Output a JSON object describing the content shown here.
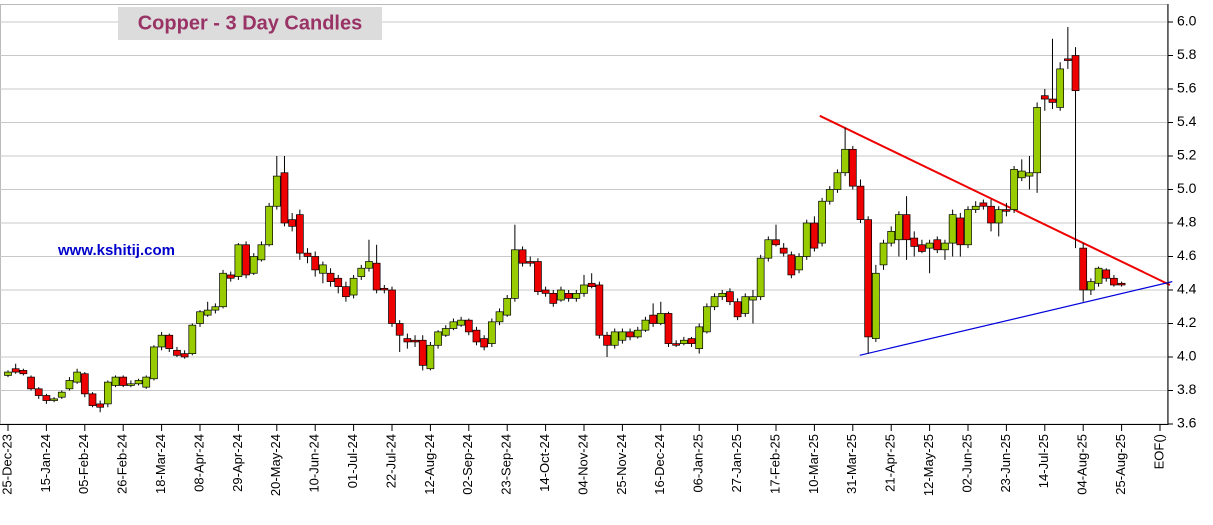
{
  "chart_data": {
    "type": "candlestick",
    "title": "Copper  - 3 Day Candles",
    "annotation": "www.kshitij.com",
    "up_color": "#99cc00",
    "down_color": "#ee0000",
    "grid": true,
    "ylim": [
      3.6,
      6.0
    ],
    "yticks": [
      3.6,
      3.8,
      {
        "value": 4,
        "label": "4.0"
      },
      4.2,
      4.4,
      4.6,
      4.8,
      {
        "value": 5,
        "label": "5.0"
      },
      5.2,
      5.4,
      5.6,
      5.8,
      {
        "value": 6,
        "label": "6.0"
      }
    ],
    "categories": [
      "25-Dec-23",
      null,
      null,
      null,
      null,
      "15-Jan-24",
      null,
      null,
      null,
      null,
      "05-Feb-24",
      null,
      null,
      null,
      null,
      "26-Feb-24",
      null,
      null,
      null,
      null,
      "18-Mar-24",
      null,
      null,
      null,
      null,
      "08-Apr-24",
      null,
      null,
      null,
      null,
      "29-Apr-24",
      null,
      null,
      null,
      null,
      "20-May-24",
      null,
      null,
      null,
      null,
      "10-Jun-24",
      null,
      null,
      null,
      null,
      "01-Jul-24",
      null,
      null,
      null,
      null,
      "22-Jul-24",
      null,
      null,
      null,
      null,
      "12-Aug-24",
      null,
      null,
      null,
      null,
      "02-Sep-24",
      null,
      null,
      null,
      null,
      "23-Sep-24",
      null,
      null,
      null,
      null,
      "14-Oct-24",
      null,
      null,
      null,
      null,
      "04-Nov-24",
      null,
      null,
      null,
      null,
      "25-Nov-24",
      null,
      null,
      null,
      null,
      "16-Dec-24",
      null,
      null,
      null,
      null,
      "06-Jan-25",
      null,
      null,
      null,
      null,
      "27-Jan-25",
      null,
      null,
      null,
      null,
      "17-Feb-25",
      null,
      null,
      null,
      null,
      "10-Mar-25",
      null,
      null,
      null,
      null,
      "31-Mar-25",
      null,
      null,
      null,
      null,
      "21-Apr-25",
      null,
      null,
      null,
      null,
      "12-May-25",
      null,
      null,
      null,
      null,
      "02-Jun-25",
      null,
      null,
      null,
      null,
      "23-Jun-25",
      null,
      null,
      null,
      null,
      "14-Jul-25",
      null,
      null,
      null,
      null,
      "04-Aug-25",
      null,
      null,
      null,
      null,
      "25-Aug-25",
      null,
      null,
      null,
      null,
      "EOF()"
    ],
    "ohlc": [
      [
        3.89,
        3.92,
        3.88,
        3.91
      ],
      [
        3.93,
        3.96,
        3.9,
        3.91
      ],
      [
        3.92,
        3.93,
        3.89,
        3.9
      ],
      [
        3.88,
        3.89,
        3.8,
        3.81
      ],
      [
        3.81,
        3.82,
        3.75,
        3.77
      ],
      [
        3.77,
        3.78,
        3.72,
        3.74
      ],
      [
        3.74,
        3.76,
        3.73,
        3.75
      ],
      [
        3.76,
        3.8,
        3.75,
        3.79
      ],
      [
        3.81,
        3.88,
        3.8,
        3.86
      ],
      [
        3.85,
        3.93,
        3.84,
        3.91
      ],
      [
        3.9,
        3.91,
        3.76,
        3.78
      ],
      [
        3.78,
        3.79,
        3.7,
        3.71
      ],
      [
        3.72,
        3.74,
        3.67,
        3.7
      ],
      [
        3.72,
        3.86,
        3.7,
        3.85
      ],
      [
        3.83,
        3.89,
        3.82,
        3.88
      ],
      [
        3.88,
        3.89,
        3.82,
        3.83
      ],
      [
        3.83,
        3.86,
        3.82,
        3.84
      ],
      [
        3.84,
        3.87,
        3.83,
        3.86
      ],
      [
        3.82,
        3.89,
        3.81,
        3.88
      ],
      [
        3.87,
        4.07,
        3.86,
        4.06
      ],
      [
        4.06,
        4.15,
        4.04,
        4.13
      ],
      [
        4.13,
        4.14,
        4.03,
        4.05
      ],
      [
        4.04,
        4.06,
        4.0,
        4.01
      ],
      [
        4.02,
        4.04,
        3.99,
        4.0
      ],
      [
        4.02,
        4.2,
        4.01,
        4.19
      ],
      [
        4.2,
        4.28,
        4.18,
        4.27
      ],
      [
        4.25,
        4.33,
        4.24,
        4.28
      ],
      [
        4.28,
        4.32,
        4.26,
        4.3
      ],
      [
        4.3,
        4.52,
        4.29,
        4.5
      ],
      [
        4.49,
        4.51,
        4.45,
        4.47
      ],
      [
        4.48,
        4.68,
        4.46,
        4.67
      ],
      [
        4.67,
        4.69,
        4.47,
        4.49
      ],
      [
        4.5,
        4.62,
        4.49,
        4.6
      ],
      [
        4.58,
        4.69,
        4.57,
        4.67
      ],
      [
        4.67,
        4.92,
        4.66,
        4.9
      ],
      [
        4.9,
        5.2,
        4.88,
        5.08
      ],
      [
        5.1,
        5.2,
        4.78,
        4.8
      ],
      [
        4.82,
        4.86,
        4.75,
        4.78
      ],
      [
        4.85,
        4.88,
        4.58,
        4.62
      ],
      [
        4.62,
        4.65,
        4.56,
        4.6
      ],
      [
        4.6,
        4.63,
        4.48,
        4.52
      ],
      [
        4.5,
        4.57,
        4.44,
        4.55
      ],
      [
        4.5,
        4.53,
        4.42,
        4.45
      ],
      [
        4.47,
        4.49,
        4.38,
        4.42
      ],
      [
        4.42,
        4.45,
        4.33,
        4.36
      ],
      [
        4.37,
        4.49,
        4.35,
        4.47
      ],
      [
        4.48,
        4.55,
        4.46,
        4.53
      ],
      [
        4.53,
        4.7,
        4.51,
        4.57
      ],
      [
        4.56,
        4.67,
        4.38,
        4.4
      ],
      [
        4.41,
        4.43,
        4.38,
        4.4
      ],
      [
        4.4,
        4.42,
        4.18,
        4.2
      ],
      [
        4.2,
        4.22,
        4.03,
        4.13
      ],
      [
        4.11,
        4.14,
        4.05,
        4.09
      ],
      [
        4.1,
        4.13,
        4.06,
        4.09
      ],
      [
        4.1,
        4.13,
        3.92,
        3.95
      ],
      [
        3.93,
        4.09,
        3.92,
        4.07
      ],
      [
        4.07,
        4.16,
        4.05,
        4.15
      ],
      [
        4.13,
        4.19,
        4.12,
        4.17
      ],
      [
        4.17,
        4.23,
        4.16,
        4.21
      ],
      [
        4.19,
        4.24,
        4.18,
        4.22
      ],
      [
        4.22,
        4.23,
        4.13,
        4.15
      ],
      [
        4.16,
        4.18,
        4.07,
        4.09
      ],
      [
        4.11,
        4.13,
        4.04,
        4.06
      ],
      [
        4.08,
        4.23,
        4.06,
        4.21
      ],
      [
        4.21,
        4.29,
        4.19,
        4.27
      ],
      [
        4.25,
        4.37,
        4.24,
        4.35
      ],
      [
        4.35,
        4.79,
        4.33,
        4.64
      ],
      [
        4.64,
        4.66,
        4.54,
        4.56
      ],
      [
        4.57,
        4.6,
        4.54,
        4.56
      ],
      [
        4.57,
        4.59,
        4.37,
        4.39
      ],
      [
        4.4,
        4.42,
        4.36,
        4.38
      ],
      [
        4.38,
        4.4,
        4.3,
        4.32
      ],
      [
        4.34,
        4.42,
        4.33,
        4.4
      ],
      [
        4.38,
        4.4,
        4.33,
        4.35
      ],
      [
        4.35,
        4.4,
        4.33,
        4.38
      ],
      [
        4.38,
        4.49,
        4.36,
        4.43
      ],
      [
        4.44,
        4.5,
        4.41,
        4.42
      ],
      [
        4.43,
        4.45,
        4.11,
        4.13
      ],
      [
        4.13,
        4.15,
        4.0,
        4.07
      ],
      [
        4.07,
        4.17,
        4.05,
        4.15
      ],
      [
        4.1,
        4.17,
        4.08,
        4.15
      ],
      [
        4.15,
        4.17,
        4.1,
        4.12
      ],
      [
        4.12,
        4.18,
        4.11,
        4.16
      ],
      [
        4.16,
        4.24,
        4.15,
        4.22
      ],
      [
        4.25,
        4.32,
        4.18,
        4.2
      ],
      [
        4.2,
        4.33,
        4.19,
        4.26
      ],
      [
        4.26,
        4.27,
        4.06,
        4.08
      ],
      [
        4.08,
        4.1,
        4.06,
        4.07
      ],
      [
        4.08,
        4.12,
        4.07,
        4.1
      ],
      [
        4.11,
        4.12,
        4.06,
        4.08
      ],
      [
        4.05,
        4.2,
        4.02,
        4.18
      ],
      [
        4.15,
        4.32,
        4.14,
        4.3
      ],
      [
        4.3,
        4.38,
        4.28,
        4.36
      ],
      [
        4.36,
        4.4,
        4.34,
        4.38
      ],
      [
        4.39,
        4.41,
        4.31,
        4.33
      ],
      [
        4.33,
        4.35,
        4.22,
        4.24
      ],
      [
        4.26,
        4.38,
        4.24,
        4.36
      ],
      [
        4.34,
        4.4,
        4.2,
        4.36
      ],
      [
        4.36,
        4.61,
        4.34,
        4.59
      ],
      [
        4.59,
        4.72,
        4.57,
        4.7
      ],
      [
        4.7,
        4.79,
        4.66,
        4.67
      ],
      [
        4.65,
        4.68,
        4.6,
        4.62
      ],
      [
        4.61,
        4.63,
        4.47,
        4.49
      ],
      [
        4.52,
        4.62,
        4.5,
        4.6
      ],
      [
        4.6,
        4.82,
        4.58,
        4.8
      ],
      [
        4.8,
        4.84,
        4.63,
        4.65
      ],
      [
        4.68,
        4.95,
        4.66,
        4.93
      ],
      [
        4.93,
        5.02,
        4.91,
        5.0
      ],
      [
        5.0,
        5.12,
        4.98,
        5.1
      ],
      [
        5.1,
        5.37,
        5.08,
        5.24
      ],
      [
        5.24,
        5.26,
        5.0,
        5.02
      ],
      [
        5.02,
        5.06,
        4.8,
        4.82
      ],
      [
        4.82,
        4.84,
        4.02,
        4.12
      ],
      [
        4.11,
        4.55,
        4.09,
        4.5
      ],
      [
        4.55,
        4.7,
        4.52,
        4.68
      ],
      [
        4.68,
        4.78,
        4.66,
        4.75
      ],
      [
        4.7,
        4.87,
        4.6,
        4.85
      ],
      [
        4.85,
        4.96,
        4.58,
        4.7
      ],
      [
        4.71,
        4.75,
        4.6,
        4.66
      ],
      [
        4.67,
        4.7,
        4.62,
        4.63
      ],
      [
        4.65,
        4.7,
        4.5,
        4.68
      ],
      [
        4.7,
        4.72,
        4.62,
        4.64
      ],
      [
        4.64,
        4.7,
        4.58,
        4.68
      ],
      [
        4.68,
        4.88,
        4.6,
        4.85
      ],
      [
        4.83,
        4.86,
        4.6,
        4.67
      ],
      [
        4.67,
        4.9,
        4.65,
        4.88
      ],
      [
        4.88,
        4.93,
        4.86,
        4.9
      ],
      [
        4.92,
        4.94,
        4.88,
        4.9
      ],
      [
        4.9,
        4.94,
        4.75,
        4.8
      ],
      [
        4.8,
        4.9,
        4.72,
        4.88
      ],
      [
        4.88,
        4.92,
        4.84,
        4.87
      ],
      [
        4.88,
        5.14,
        4.86,
        5.12
      ],
      [
        5.07,
        5.18,
        5.05,
        5.11
      ],
      [
        5.08,
        5.2,
        5.0,
        5.1
      ],
      [
        5.1,
        5.52,
        4.98,
        5.49
      ],
      [
        5.56,
        5.6,
        5.47,
        5.54
      ],
      [
        5.54,
        5.9,
        5.48,
        5.52
      ],
      [
        5.49,
        5.76,
        5.47,
        5.72
      ],
      [
        5.78,
        5.97,
        5.72,
        5.77
      ],
      [
        5.8,
        5.85,
        4.65,
        5.59
      ],
      [
        4.65,
        4.68,
        4.33,
        4.4
      ],
      [
        4.4,
        4.47,
        4.37,
        4.45
      ],
      [
        4.44,
        4.54,
        4.42,
        4.53
      ],
      [
        4.52,
        4.53,
        4.45,
        4.47
      ],
      [
        4.47,
        4.49,
        4.42,
        4.43
      ],
      [
        4.44,
        4.45,
        4.42,
        4.43
      ],
      null,
      null,
      null,
      null,
      null
    ],
    "trendlines": [
      {
        "color": "#ee0000",
        "x": [
          105.7,
          151.3
        ],
        "y": [
          5.44,
          4.43
        ]
      },
      {
        "color": "#0000dd",
        "x": [
          110.9,
          151.6
        ],
        "y": [
          4.01,
          4.45
        ]
      }
    ]
  }
}
